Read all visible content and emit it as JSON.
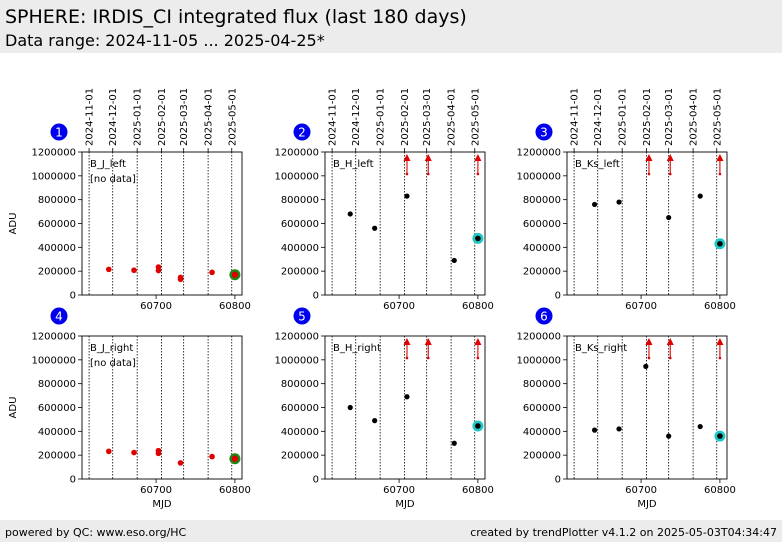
{
  "header": {
    "title": "SPHERE: IRDIS_CI integrated flux (last 180 days)",
    "subtitle": "Data range: 2024-11-05 ... 2025-04-25*"
  },
  "footer": {
    "left": "powered by QC: www.eso.org/HC",
    "right": "created by trendPlotter v4.1.2 on 2025-05-03T04:34:47"
  },
  "chart_data": {
    "type": "scatter",
    "xlabel": "MJD",
    "ylabel": "ADU",
    "xlim": [
      60606,
      60809
    ],
    "ylim": [
      0,
      1200000
    ],
    "yticks": [
      0,
      200000,
      400000,
      600000,
      800000,
      1000000,
      1200000
    ],
    "xticks": [
      60700,
      60800
    ],
    "date_ticks": [
      {
        "mjd": 60615,
        "label": "2024-11-01"
      },
      {
        "mjd": 60645,
        "label": "2024-12-01"
      },
      {
        "mjd": 60676,
        "label": "2025-01-01"
      },
      {
        "mjd": 60707,
        "label": "2025-02-01"
      },
      {
        "mjd": 60735,
        "label": "2025-03-01"
      },
      {
        "mjd": 60766,
        "label": "2025-04-01"
      },
      {
        "mjd": 60796,
        "label": "2025-05-01"
      }
    ],
    "colors": {
      "red": "#e00000",
      "black": "#000000",
      "green": "#1a8a1a",
      "cyan": "#1ec8c8",
      "badge": "#0000ee"
    },
    "panels": [
      {
        "num": "1",
        "label": "B_J_left",
        "note": "[no data]",
        "red_points": [
          [
            60640,
            215000
          ],
          [
            60672,
            208000
          ],
          [
            60703,
            205000
          ],
          [
            60703,
            235000
          ],
          [
            60731,
            132000
          ],
          [
            60731,
            148000
          ],
          [
            60771,
            190000
          ]
        ],
        "black_points": [],
        "latest": {
          "x": 60800,
          "y": 170000,
          "ring": "green"
        },
        "arrows": []
      },
      {
        "num": "2",
        "label": "B_H_left",
        "note": "",
        "red_points": [],
        "black_points": [
          [
            60638,
            680000
          ],
          [
            60669,
            560000
          ],
          [
            60710,
            830000
          ],
          [
            60770,
            290000
          ]
        ],
        "latest": {
          "x": 60800,
          "y": 475000,
          "ring": "cyan"
        },
        "arrows": [
          60710,
          60737,
          60800
        ]
      },
      {
        "num": "3",
        "label": "B_Ks_left",
        "note": "",
        "red_points": [],
        "black_points": [
          [
            60641,
            760000
          ],
          [
            60672,
            780000
          ],
          [
            60735,
            650000
          ],
          [
            60775,
            830000
          ]
        ],
        "latest": {
          "x": 60800,
          "y": 430000,
          "ring": "cyan"
        },
        "arrows": [
          60710,
          60737,
          60800
        ]
      },
      {
        "num": "4",
        "label": "B_J_right",
        "note": "[no data]",
        "red_points": [
          [
            60640,
            232000
          ],
          [
            60672,
            222000
          ],
          [
            60703,
            215000
          ],
          [
            60703,
            238000
          ],
          [
            60731,
            135000
          ],
          [
            60771,
            188000
          ]
        ],
        "black_points": [],
        "latest": {
          "x": 60800,
          "y": 170000,
          "ring": "green"
        },
        "arrows": []
      },
      {
        "num": "5",
        "label": "B_H_right",
        "note": "",
        "red_points": [],
        "black_points": [
          [
            60638,
            600000
          ],
          [
            60669,
            490000
          ],
          [
            60710,
            690000
          ],
          [
            60770,
            300000
          ]
        ],
        "latest": {
          "x": 60800,
          "y": 445000,
          "ring": "cyan"
        },
        "arrows": [
          60710,
          60737,
          60800
        ]
      },
      {
        "num": "6",
        "label": "B_Ks_right",
        "note": "",
        "red_points": [],
        "black_points": [
          [
            60641,
            410000
          ],
          [
            60672,
            420000
          ],
          [
            60706,
            945000
          ],
          [
            60735,
            360000
          ],
          [
            60775,
            440000
          ]
        ],
        "latest": {
          "x": 60800,
          "y": 360000,
          "ring": "cyan"
        },
        "arrows": [
          60710,
          60737,
          60800
        ]
      }
    ]
  }
}
